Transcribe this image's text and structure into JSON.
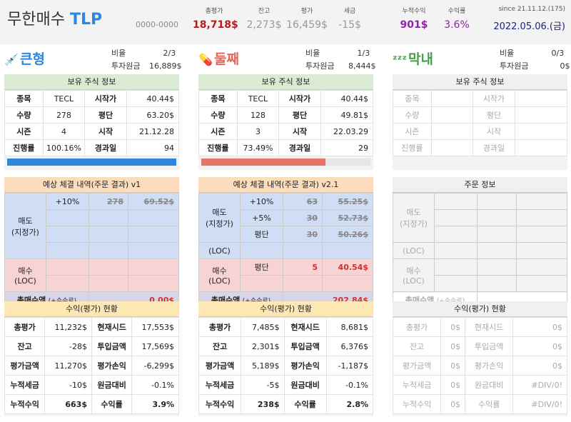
{
  "header": {
    "title_main": "무한매수",
    "title_accent": "TLP",
    "account": "0000-0000",
    "stats": [
      {
        "label": "총평가",
        "value": "18,718$",
        "color": "#b71c1c",
        "bold": true
      },
      {
        "label": "잔고",
        "value": "2,273$",
        "color": "#999999",
        "bold": false
      },
      {
        "label": "평가",
        "value": "16,459$",
        "color": "#999999",
        "bold": false
      },
      {
        "label": "세금",
        "value": "-15$",
        "color": "#999999",
        "bold": false
      },
      {
        "label": "누적수익",
        "value": "901$",
        "color": "#8e24aa",
        "bold": true
      },
      {
        "label": "수익률",
        "value": "3.6%",
        "color": "#8e24aa",
        "bold": false
      }
    ],
    "since": "since 21.11.12.(175)",
    "date": "2022.05.06.(금)"
  },
  "sections": [
    {
      "name": "큰형",
      "icon": "syringe-icon",
      "glyph": "💉",
      "color": "#2e86de",
      "ratio_label": "비율",
      "ratio": "2/3",
      "invest_label": "투자원금",
      "invest": "16,889$",
      "holding": {
        "title": "보유 주식 정보",
        "rows": [
          [
            "종목",
            "TECL",
            "시작가",
            "40.44$"
          ],
          [
            "수량",
            "278",
            "평단",
            "63.20$"
          ],
          [
            "시즌",
            "4",
            "시작",
            "21.12.28"
          ],
          [
            "진행률",
            "100.16%",
            "경과일",
            "94"
          ]
        ],
        "progress": 100.16,
        "bar_color": "#2e86de"
      },
      "order": {
        "title": "예상 체결 내역(주문 결과) v1",
        "sell_label": "매도\n(지정가)",
        "buy_label": "매수\n(LOC)",
        "sell_rows": [
          [
            "+10%",
            "278",
            "69.52$"
          ],
          [
            "",
            "",
            ""
          ],
          [
            "",
            "",
            ""
          ],
          [
            "",
            "",
            ""
          ]
        ],
        "buy_rows": [
          [
            "",
            "",
            ""
          ],
          [
            "",
            "",
            ""
          ]
        ],
        "total_label": "총매수액",
        "total_fee": "(+수수료)",
        "total": "0.00$"
      },
      "profit": {
        "title": "수익(평가) 현황",
        "rows": [
          [
            "총평가",
            "11,232$",
            "현재시드",
            "17,553$"
          ],
          [
            "잔고",
            "-28$",
            "투입금액",
            "17,569$"
          ],
          [
            "평가금액",
            "11,270$",
            "평가손익",
            "-6,299$"
          ],
          [
            "누적세금",
            "-10$",
            "원금대비",
            "-0.1%"
          ],
          [
            "누적수익",
            "663$",
            "수익률",
            "3.9%"
          ]
        ]
      }
    },
    {
      "name": "둘째",
      "icon": "pill-icon",
      "glyph": "💊",
      "color": "#e06a5a",
      "ratio_label": "비율",
      "ratio": "1/3",
      "invest_label": "투자원금",
      "invest": "8,444$",
      "holding": {
        "title": "보유 주식 정보",
        "rows": [
          [
            "종목",
            "TECL",
            "시작가",
            "40.44$"
          ],
          [
            "수량",
            "128",
            "평단",
            "49.81$"
          ],
          [
            "시즌",
            "3",
            "시작",
            "22.03.29"
          ],
          [
            "진행률",
            "73.49%",
            "경과일",
            "29"
          ]
        ],
        "progress": 73.49,
        "bar_color": "#e57368"
      },
      "order": {
        "title": "예상 체결 내역(주문 결과) v2.1",
        "sell_label": "매도\n(지정가)",
        "sell_label2": "(LOC)",
        "buy_label": "매수\n(LOC)",
        "sell_rows": [
          [
            "+10%",
            "63",
            "55.25$"
          ],
          [
            "+5%",
            "30",
            "52.73$"
          ],
          [
            "평단",
            "30",
            "50.26$"
          ],
          [
            "",
            "",
            ""
          ]
        ],
        "buy_rows": [
          [
            "평단",
            "5",
            "40.54$"
          ],
          [
            "",
            "",
            ""
          ]
        ],
        "total_label": "총매수액",
        "total_fee": "(+수수료)",
        "total": "202.84$"
      },
      "profit": {
        "title": "수익(평가) 현황",
        "rows": [
          [
            "총평가",
            "7,485$",
            "현재시드",
            "8,681$"
          ],
          [
            "잔고",
            "2,301$",
            "투입금액",
            "6,376$"
          ],
          [
            "평가금액",
            "5,189$",
            "평가손익",
            "-1,187$"
          ],
          [
            "누적세금",
            "-5$",
            "원금대비",
            "-0.1%"
          ],
          [
            "누적수익",
            "238$",
            "수익률",
            "2.8%"
          ]
        ]
      }
    },
    {
      "name": "막내",
      "icon": "sleep-zzz-icon",
      "glyph": "ᶻᶻᶻ",
      "color": "#43a047",
      "ratio_label": "비율",
      "ratio": "0/3",
      "invest_label": "투자원금",
      "invest": "0$",
      "holding": {
        "title": "보유 주식 정보",
        "rows": [
          [
            "종목",
            "",
            "시작가",
            ""
          ],
          [
            "수량",
            "",
            "평단",
            ""
          ],
          [
            "시즌",
            "",
            "시작",
            ""
          ],
          [
            "진행률",
            "",
            "경과일",
            ""
          ]
        ]
      },
      "order": {
        "title": "주문 정보",
        "sell_label": "매도\n(지정가)",
        "sell_label2": "(LOC)",
        "buy_label": "매수\n(LOC)",
        "total_label": "총매수액",
        "total_fee": "(+수수료)",
        "total": ""
      },
      "profit": {
        "title": "수익(평가) 현황",
        "rows": [
          [
            "총평가",
            "0$",
            "현재시드",
            "0$"
          ],
          [
            "잔고",
            "0$",
            "투입금액",
            "0$"
          ],
          [
            "평가금액",
            "0$",
            "평가손익",
            "0$"
          ],
          [
            "누적세금",
            "0$",
            "원금대비",
            "#DIV/0!"
          ],
          [
            "누적수익",
            "0$",
            "수익률",
            "#DIV/0!"
          ]
        ]
      }
    }
  ]
}
